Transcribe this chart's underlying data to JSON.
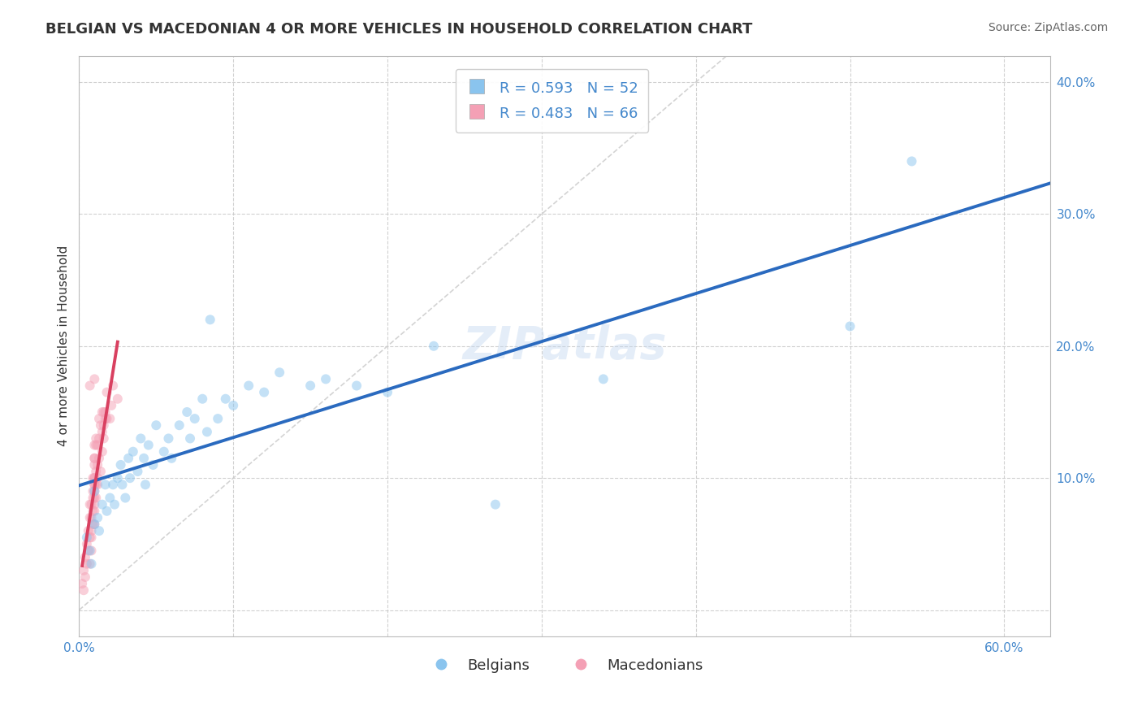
{
  "title": "BELGIAN VS MACEDONIAN 4 OR MORE VEHICLES IN HOUSEHOLD CORRELATION CHART",
  "source": "Source: ZipAtlas.com",
  "ylabel": "4 or more Vehicles in Household",
  "watermark": "ZIPatlas",
  "x_ticks": [
    0.0,
    0.1,
    0.2,
    0.3,
    0.4,
    0.5,
    0.6
  ],
  "y_ticks": [
    0.0,
    0.1,
    0.2,
    0.3,
    0.4
  ],
  "x_min": 0.0,
  "x_max": 0.63,
  "y_min": -0.02,
  "y_max": 0.42,
  "belgian_color": "#8ac4ee",
  "macedonian_color": "#f4a0b5",
  "belgian_line_color": "#2a6abf",
  "macedonian_line_color": "#d94060",
  "diagonal_color": "#cccccc",
  "grid_color": "#cccccc",
  "R_belgian": 0.593,
  "N_belgian": 52,
  "R_macedonian": 0.483,
  "N_macedonian": 66,
  "legend_label_belgian": "Belgians",
  "legend_label_macedonian": "Macedonians",
  "belgian_scatter": [
    [
      0.005,
      0.055
    ],
    [
      0.007,
      0.045
    ],
    [
      0.008,
      0.035
    ],
    [
      0.01,
      0.065
    ],
    [
      0.01,
      0.09
    ],
    [
      0.012,
      0.07
    ],
    [
      0.013,
      0.06
    ],
    [
      0.015,
      0.08
    ],
    [
      0.017,
      0.095
    ],
    [
      0.018,
      0.075
    ],
    [
      0.02,
      0.085
    ],
    [
      0.022,
      0.095
    ],
    [
      0.023,
      0.08
    ],
    [
      0.025,
      0.1
    ],
    [
      0.027,
      0.11
    ],
    [
      0.028,
      0.095
    ],
    [
      0.03,
      0.085
    ],
    [
      0.032,
      0.115
    ],
    [
      0.033,
      0.1
    ],
    [
      0.035,
      0.12
    ],
    [
      0.038,
      0.105
    ],
    [
      0.04,
      0.13
    ],
    [
      0.042,
      0.115
    ],
    [
      0.043,
      0.095
    ],
    [
      0.045,
      0.125
    ],
    [
      0.048,
      0.11
    ],
    [
      0.05,
      0.14
    ],
    [
      0.055,
      0.12
    ],
    [
      0.058,
      0.13
    ],
    [
      0.06,
      0.115
    ],
    [
      0.065,
      0.14
    ],
    [
      0.07,
      0.15
    ],
    [
      0.072,
      0.13
    ],
    [
      0.075,
      0.145
    ],
    [
      0.08,
      0.16
    ],
    [
      0.083,
      0.135
    ],
    [
      0.085,
      0.22
    ],
    [
      0.09,
      0.145
    ],
    [
      0.095,
      0.16
    ],
    [
      0.1,
      0.155
    ],
    [
      0.11,
      0.17
    ],
    [
      0.12,
      0.165
    ],
    [
      0.13,
      0.18
    ],
    [
      0.15,
      0.17
    ],
    [
      0.16,
      0.175
    ],
    [
      0.18,
      0.17
    ],
    [
      0.2,
      0.165
    ],
    [
      0.23,
      0.2
    ],
    [
      0.27,
      0.08
    ],
    [
      0.34,
      0.175
    ],
    [
      0.5,
      0.215
    ],
    [
      0.54,
      0.34
    ]
  ],
  "macedonian_scatter": [
    [
      0.002,
      0.02
    ],
    [
      0.003,
      0.03
    ],
    [
      0.003,
      0.015
    ],
    [
      0.004,
      0.04
    ],
    [
      0.004,
      0.025
    ],
    [
      0.005,
      0.05
    ],
    [
      0.005,
      0.035
    ],
    [
      0.006,
      0.06
    ],
    [
      0.006,
      0.045
    ],
    [
      0.007,
      0.07
    ],
    [
      0.007,
      0.055
    ],
    [
      0.007,
      0.08
    ],
    [
      0.007,
      0.035
    ],
    [
      0.008,
      0.06
    ],
    [
      0.008,
      0.07
    ],
    [
      0.008,
      0.045
    ],
    [
      0.008,
      0.08
    ],
    [
      0.008,
      0.055
    ],
    [
      0.009,
      0.09
    ],
    [
      0.009,
      0.065
    ],
    [
      0.009,
      0.1
    ],
    [
      0.009,
      0.075
    ],
    [
      0.009,
      0.085
    ],
    [
      0.01,
      0.095
    ],
    [
      0.01,
      0.11
    ],
    [
      0.01,
      0.065
    ],
    [
      0.01,
      0.1
    ],
    [
      0.01,
      0.075
    ],
    [
      0.01,
      0.08
    ],
    [
      0.01,
      0.09
    ],
    [
      0.01,
      0.1
    ],
    [
      0.01,
      0.115
    ],
    [
      0.01,
      0.085
    ],
    [
      0.01,
      0.125
    ],
    [
      0.01,
      0.095
    ],
    [
      0.01,
      0.115
    ],
    [
      0.011,
      0.105
    ],
    [
      0.011,
      0.085
    ],
    [
      0.011,
      0.125
    ],
    [
      0.011,
      0.095
    ],
    [
      0.011,
      0.13
    ],
    [
      0.012,
      0.1
    ],
    [
      0.012,
      0.11
    ],
    [
      0.012,
      0.125
    ],
    [
      0.012,
      0.095
    ],
    [
      0.013,
      0.145
    ],
    [
      0.013,
      0.115
    ],
    [
      0.013,
      0.13
    ],
    [
      0.014,
      0.105
    ],
    [
      0.014,
      0.14
    ],
    [
      0.015,
      0.12
    ],
    [
      0.015,
      0.15
    ],
    [
      0.015,
      0.135
    ],
    [
      0.016,
      0.13
    ],
    [
      0.016,
      0.15
    ],
    [
      0.016,
      0.14
    ],
    [
      0.017,
      0.145
    ],
    [
      0.017,
      0.15
    ],
    [
      0.018,
      0.145
    ],
    [
      0.018,
      0.165
    ],
    [
      0.02,
      0.145
    ],
    [
      0.021,
      0.155
    ],
    [
      0.022,
      0.17
    ],
    [
      0.025,
      0.16
    ],
    [
      0.007,
      0.17
    ],
    [
      0.01,
      0.175
    ]
  ],
  "title_fontsize": 13,
  "axis_label_fontsize": 11,
  "tick_fontsize": 11,
  "legend_fontsize": 13,
  "source_fontsize": 10,
  "watermark_fontsize": 40,
  "scatter_size": 75,
  "scatter_alpha": 0.5,
  "line_width": 2.8,
  "background_color": "#ffffff",
  "tick_color": "#4488cc",
  "label_color": "#333333"
}
